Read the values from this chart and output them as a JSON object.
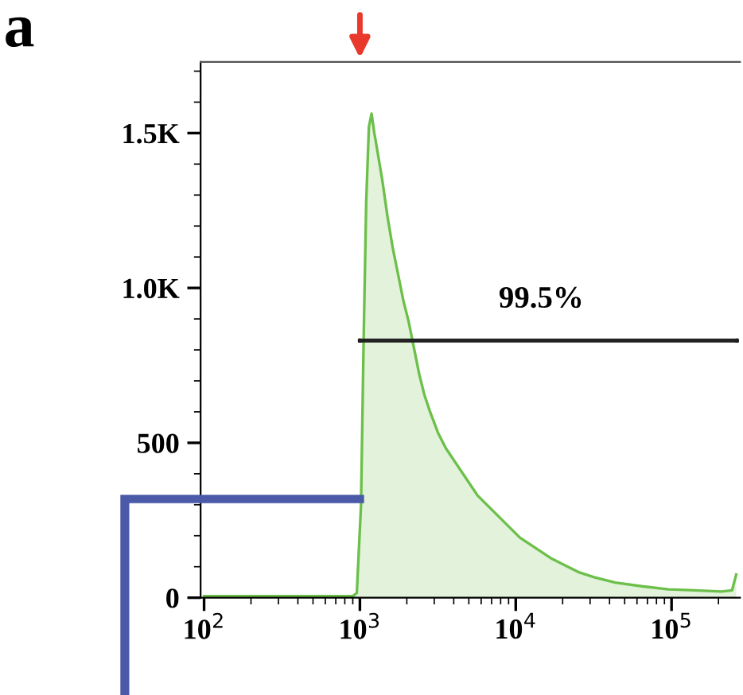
{
  "chart_data": {
    "type": "area",
    "log": "x",
    "grid": false,
    "series": [
      {
        "color": "#6cc04a",
        "x": [
          100,
          500,
          900,
          955,
          1016,
          1056,
          1098,
          1142,
          1188,
          1235,
          1285,
          1390,
          1503,
          1625,
          1758,
          1901,
          2056,
          2223,
          2404,
          2600,
          2812,
          3162,
          3556,
          4159,
          4864,
          5689,
          6653,
          7780,
          9099,
          10640,
          13460,
          17020,
          19900,
          25180,
          31840,
          43550,
          64500,
          95500,
          141300,
          209000,
          244500,
          260000
        ],
        "values": [
          5,
          5,
          5,
          15,
          296,
          823,
          1282,
          1520,
          1563,
          1503,
          1452,
          1350,
          1231,
          1129,
          1044,
          959,
          891,
          806,
          721,
          653,
          602,
          534,
          483,
          432,
          381,
          330,
          296,
          262,
          228,
          194,
          160,
          126,
          109,
          83,
          66,
          49,
          37,
          27,
          24,
          20,
          24,
          75
        ]
      },
      {
        "type": "line",
        "color": "#222222",
        "x": [
          1000,
          262144
        ],
        "values": [
          830,
          830
        ]
      }
    ],
    "xlim": [
      95,
      275000
    ],
    "ylim": [
      0,
      1730
    ],
    "xticks": [
      {
        "value": 100,
        "label": "10$^{2}$"
      },
      {
        "value": 1000,
        "label": "10$^{3}$"
      },
      {
        "value": 10000,
        "label": "10$^{4}$"
      },
      {
        "value": 100000,
        "label": "10$^{5}$"
      }
    ],
    "yticks": [
      0,
      500,
      {
        "value": 1000,
        "label": "1.0K"
      },
      {
        "value": 1500,
        "label": "1.5K"
      }
    ],
    "annotations": [
      "a",
      "99.5%"
    ]
  }
}
